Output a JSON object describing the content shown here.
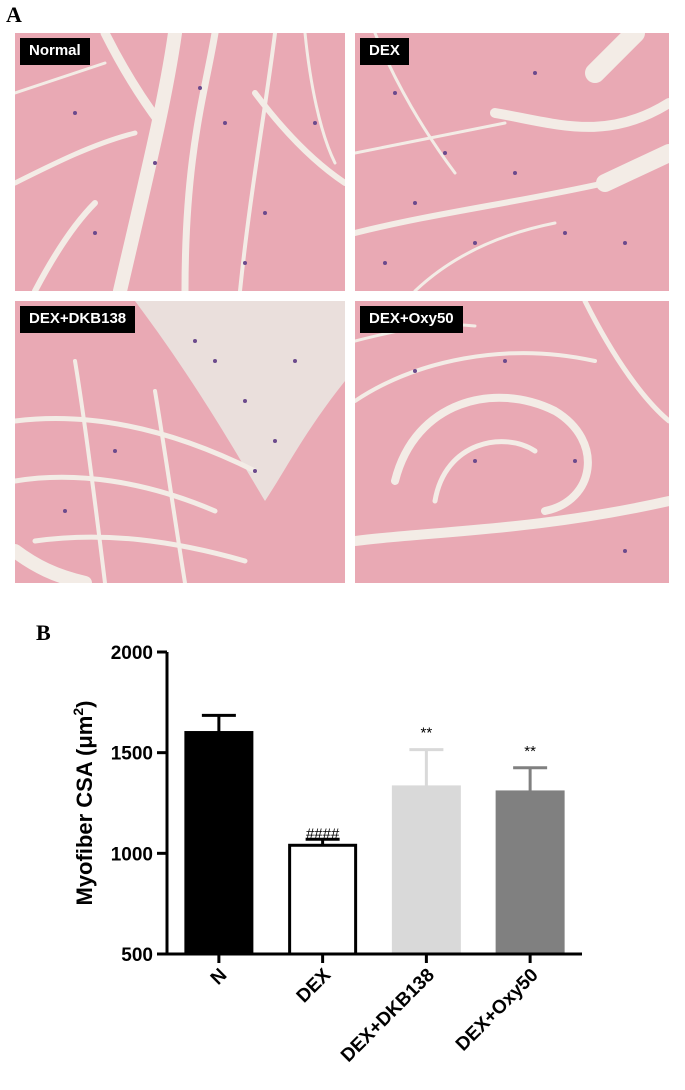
{
  "panels": {
    "a_letter": "A",
    "b_letter": "B"
  },
  "images": [
    {
      "label": "Normal"
    },
    {
      "label": "DEX"
    },
    {
      "label": "DEX+DKB138"
    },
    {
      "label": "DEX+Oxy50"
    }
  ],
  "colors": {
    "tissue": "#e9a9b4",
    "gap": "#f3ece6",
    "nuclei": "#6b4a8c"
  },
  "chart_data": {
    "type": "bar",
    "ylabel_main": "Myofiber CSA (",
    "ylabel_unit": "μm",
    "ylabel_sup": "2",
    "ylabel_close": ")",
    "ylim": [
      500,
      2000
    ],
    "yticks": [
      "500",
      "1000",
      "1500",
      "2000"
    ],
    "categories": [
      "N",
      "DEX",
      "DEX+DKB138",
      "DEX+Oxy50"
    ],
    "values": [
      1600,
      1040,
      1330,
      1305
    ],
    "errors": [
      85,
      30,
      185,
      120
    ],
    "fill_colors": [
      "#000000",
      "#ffffff",
      "#d9d9d9",
      "#808080"
    ],
    "error_colors": [
      "#000000",
      "#000000",
      "#d9d9d9",
      "#808080"
    ],
    "annotations": [
      "",
      "####",
      "**",
      "**"
    ]
  }
}
